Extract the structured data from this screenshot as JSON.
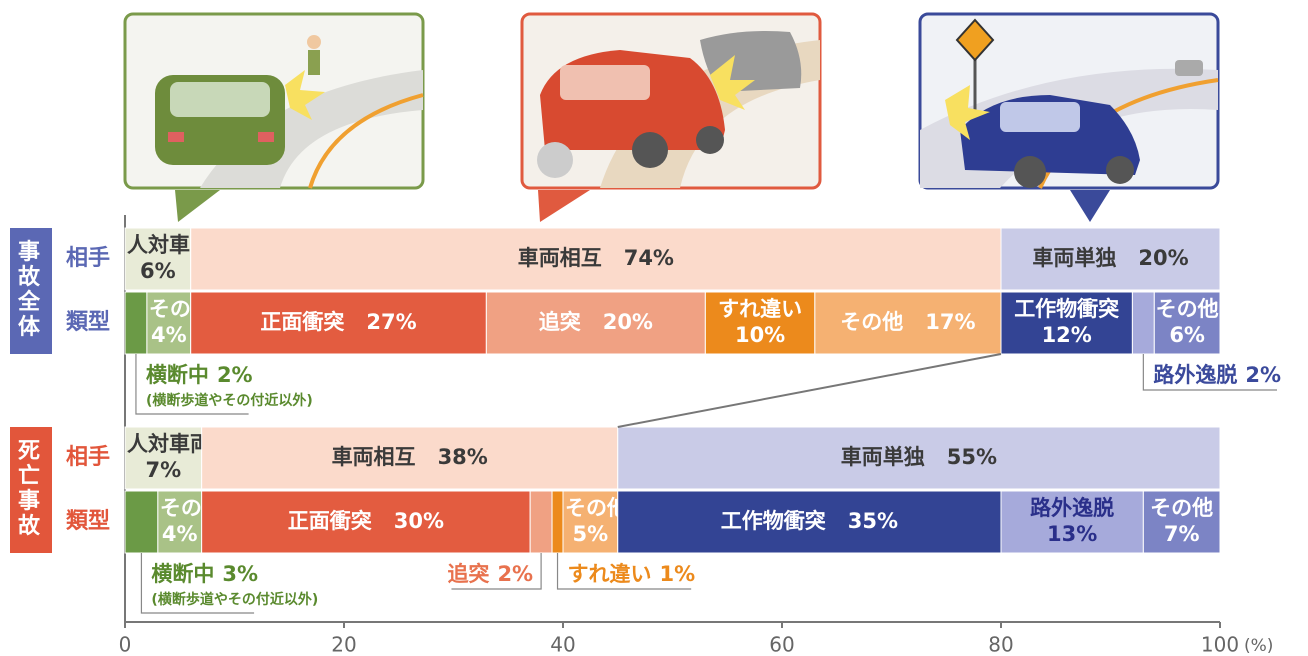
{
  "chart_data": {
    "type": "stacked_bar",
    "xlim": [
      0,
      100
    ],
    "xticks": [
      0,
      20,
      40,
      60,
      80,
      100
    ],
    "x_unit": "(%)",
    "groups": [
      {
        "name": "事故全体",
        "color": "#5b68b4",
        "rows": [
          {
            "name": "相手",
            "segments": [
              {
                "name": "人対車両",
                "value": 6,
                "value_label": "6%",
                "color": "#e8ebd7"
              },
              {
                "name": "車両相互",
                "value": 74,
                "value_label": "74%",
                "color": "#fbdacb"
              },
              {
                "name": "車両単独",
                "value": 20,
                "value_label": "20%",
                "color": "#c9cbe7"
              }
            ]
          },
          {
            "name": "類型",
            "segments": [
              {
                "name": "横断中",
                "value": 2,
                "value_label": "2%",
                "color": "#6b9a46",
                "label_color": "#5a8a2e",
                "note": "(横断歩道やその付近以外)"
              },
              {
                "name": "その他",
                "value": 4,
                "value_label": "4%",
                "color": "#a9c287"
              },
              {
                "name": "正面衝突",
                "value": 27,
                "value_label": "27%",
                "color": "#e35c40"
              },
              {
                "name": "追突",
                "value": 20,
                "value_label": "20%",
                "color": "#f0a183"
              },
              {
                "name": "すれ違い",
                "value": 10,
                "value_label": "10%",
                "color": "#ec8a1c"
              },
              {
                "name": "その他",
                "value": 17,
                "value_label": "17%",
                "color": "#f5b172"
              },
              {
                "name": "工作物衝突",
                "value": 12,
                "value_label": "12%",
                "color": "#334494"
              },
              {
                "name": "路外逸脱",
                "value": 2,
                "value_label": "2%",
                "color": "#a6aadb",
                "label_color": "#3b4a9c"
              },
              {
                "name": "その他",
                "value": 6,
                "value_label": "6%",
                "color": "#7c84c5"
              }
            ]
          }
        ]
      },
      {
        "name": "死亡事故",
        "color": "#e2563b",
        "rows": [
          {
            "name": "相手",
            "segments": [
              {
                "name": "人対車両",
                "value": 7,
                "value_label": "7%",
                "color": "#e8ebd7"
              },
              {
                "name": "車両相互",
                "value": 38,
                "value_label": "38%",
                "color": "#fbdacb"
              },
              {
                "name": "車両単独",
                "value": 55,
                "value_label": "55%",
                "color": "#c9cbe7"
              }
            ]
          },
          {
            "name": "類型",
            "segments": [
              {
                "name": "横断中",
                "value": 3,
                "value_label": "3%",
                "color": "#6b9a46",
                "label_color": "#5a8a2e",
                "note": "(横断歩道やその付近以外)"
              },
              {
                "name": "その他",
                "value": 4,
                "value_label": "4%",
                "color": "#a9c287"
              },
              {
                "name": "正面衝突",
                "value": 30,
                "value_label": "30%",
                "color": "#e35c40"
              },
              {
                "name": "追突",
                "value": 2,
                "value_label": "2%",
                "color": "#f0a183",
                "label_color": "#e8724e"
              },
              {
                "name": "すれ違い",
                "value": 1,
                "value_label": "1%",
                "color": "#ec8a1c",
                "label_color": "#ec8a1c"
              },
              {
                "name": "その他",
                "value": 5,
                "value_label": "5%",
                "color": "#f5b172"
              },
              {
                "name": "工作物衝突",
                "value": 35,
                "value_label": "35%",
                "color": "#334494"
              },
              {
                "name": "路外逸脱",
                "value": 13,
                "value_label": "13%",
                "color": "#a6aadb",
                "label_color": "#2a2f8a"
              },
              {
                "name": "その他",
                "value": 7,
                "value_label": "7%",
                "color": "#7c84c5"
              }
            ]
          }
        ]
      }
    ]
  }
}
